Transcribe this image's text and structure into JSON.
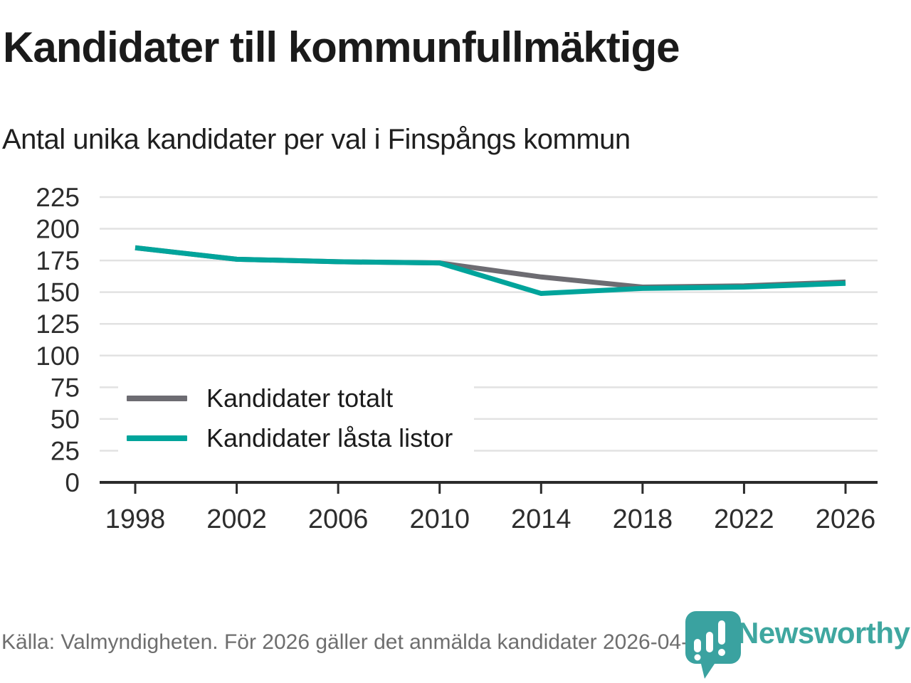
{
  "header": {
    "title": "Kandidater till kommunfullmäktige",
    "subtitle": "Antal unika kandidater per val i Finspångs kommun"
  },
  "chart_data": {
    "type": "line",
    "title": "Kandidater till kommunfullmäktige",
    "subtitle": "Antal unika kandidater per val i Finspångs kommun",
    "categories": [
      1998,
      2002,
      2006,
      2010,
      2014,
      2018,
      2022,
      2026
    ],
    "series": [
      {
        "name": "Kandidater totalt",
        "color": "#6d6c72",
        "values": [
          185,
          176,
          174,
          173,
          162,
          154,
          155,
          158
        ]
      },
      {
        "name": "Kandidater låsta listor",
        "color": "#00a49b",
        "values": [
          185,
          176,
          174,
          173,
          149,
          153,
          154,
          157
        ]
      }
    ],
    "xlabel": "",
    "ylabel": "",
    "ylim": [
      0,
      225
    ],
    "ytick_step": 25,
    "grid": true,
    "legend_position": "inside-left"
  },
  "colors": {
    "gridline": "#e2e2e2",
    "axis": "#2b2b2b",
    "tick_text": "#2d2d2d",
    "brand_teal": "#3fa7a0"
  },
  "footer": {
    "source": "Källa: Valmyndigheten. För 2026 gäller det anmälda kandidater 2026-04-10.",
    "brand": "Newsworthy"
  }
}
